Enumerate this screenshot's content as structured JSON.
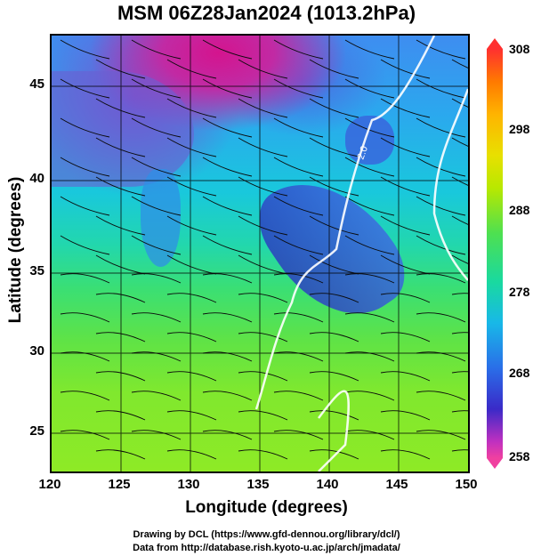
{
  "title": "MSM 06Z28Jan2024 (1013.2hPa)",
  "axes": {
    "xlabel": "Longitude (degrees)",
    "ylabel": "Latitude  (degrees)",
    "xticks": [
      "120",
      "125",
      "130",
      "135",
      "140",
      "145",
      "150"
    ],
    "yticks": [
      "45",
      "40",
      "35",
      "30",
      "25"
    ]
  },
  "colorbar": {
    "ticks": [
      "308",
      "298",
      "288",
      "278",
      "268",
      "258"
    ]
  },
  "contour_label": "2.0",
  "footer": {
    "line1": "Drawing by DCL (https://www.gfd-dennou.org/library/dcl/)",
    "line2": "Data from http://database.rish.kyoto-u.ac.jp/arch/jmadata/"
  }
}
